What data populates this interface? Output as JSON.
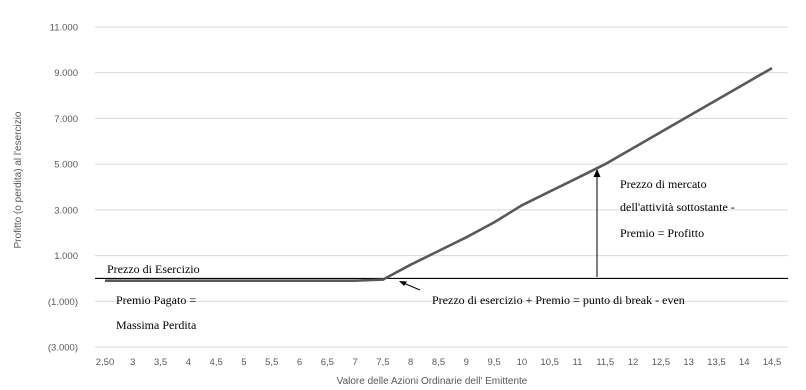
{
  "chart_data": {
    "type": "line",
    "xlabel": "Valore delle Azioni Ordinarie dell' Emittente",
    "ylabel": "Profitto (o perdita) al l'esercizio",
    "x_ticks": [
      "2,50",
      "3",
      "3,5",
      "4",
      "4,5",
      "5",
      "5,5",
      "6",
      "6,5",
      "7",
      "7,5",
      "8",
      "8,5",
      "9",
      "9,5",
      "10",
      "10,5",
      "11",
      "11,5",
      "12",
      "12,5",
      "13",
      "13,5",
      "14",
      "14,5"
    ],
    "y_ticks": [
      "11.000",
      "9.000",
      "7.000",
      "5.000",
      "3.000",
      "1.000",
      "(1.000)",
      "(3.000)"
    ],
    "ylim": [
      -3000,
      11000
    ],
    "grid": true,
    "series": [
      {
        "x": [
          2.5,
          3,
          3.5,
          4,
          4.5,
          5,
          5.5,
          6,
          6.5,
          7,
          7.5,
          8,
          8.5,
          9,
          9.5,
          10,
          10.5,
          11,
          11.5,
          12,
          12.5,
          13,
          13.5,
          14,
          14.5
        ],
        "values": [
          -100,
          -100,
          -100,
          -100,
          -100,
          -100,
          -100,
          -100,
          -100,
          -100,
          -50,
          600,
          1200,
          1800,
          2450,
          3200,
          3800,
          4400,
          5000,
          5700,
          6400,
          7100,
          7800,
          8500,
          9200
        ],
        "color": "#595959"
      }
    ],
    "reference_line": {
      "y": 0,
      "color": "#000000"
    },
    "annotations": {
      "strike": "Prezzo di Esercizio",
      "premium_1": "Premio Pagato =",
      "premium_2": "Massima Perdita",
      "breakeven": "Prezzo di esercizio + Premio = punto di break - even",
      "profit_1": "Prezzo di mercato",
      "profit_2": "dell'attività sottostante -",
      "profit_3": "Premio = Profitto"
    }
  }
}
